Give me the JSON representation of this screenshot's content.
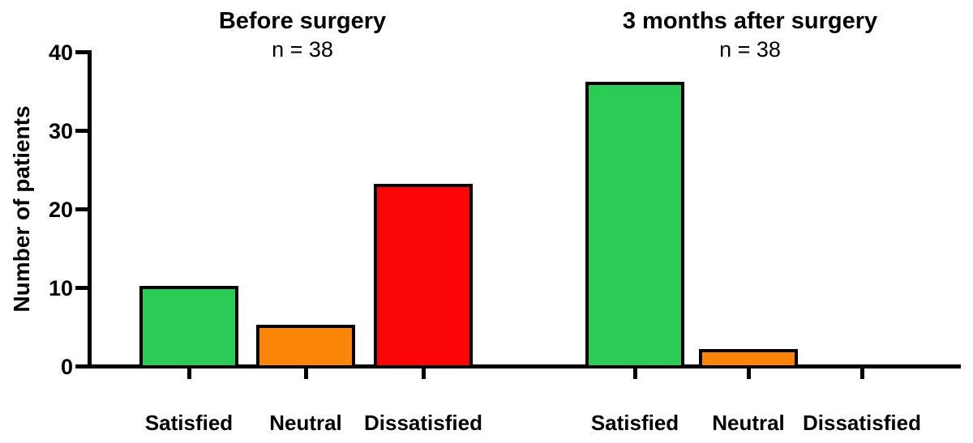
{
  "chart_data": {
    "type": "bar",
    "title": "",
    "ylabel": "Number of patients",
    "xlabel": "",
    "ylim": [
      0,
      40
    ],
    "yticks": [
      0,
      10,
      20,
      30,
      40
    ],
    "grid": false,
    "legend_position": "none",
    "categories": [
      "Satisfied",
      "Neutral",
      "Dissatisfied"
    ],
    "groups": [
      {
        "id": "before",
        "title": "Before surgery",
        "subtitle": "n = 38",
        "values": [
          10,
          5,
          23
        ]
      },
      {
        "id": "after",
        "title": "3 months after surgery",
        "subtitle": "n = 38",
        "values": [
          36,
          2,
          0
        ]
      }
    ],
    "series_colors": [
      "#2BCB55",
      "#FA8508",
      "#FA0505"
    ],
    "bar_border_color": "#000000",
    "axis_color": "#000000",
    "background_color": "#FFFFFF",
    "text_color": "#000000"
  }
}
